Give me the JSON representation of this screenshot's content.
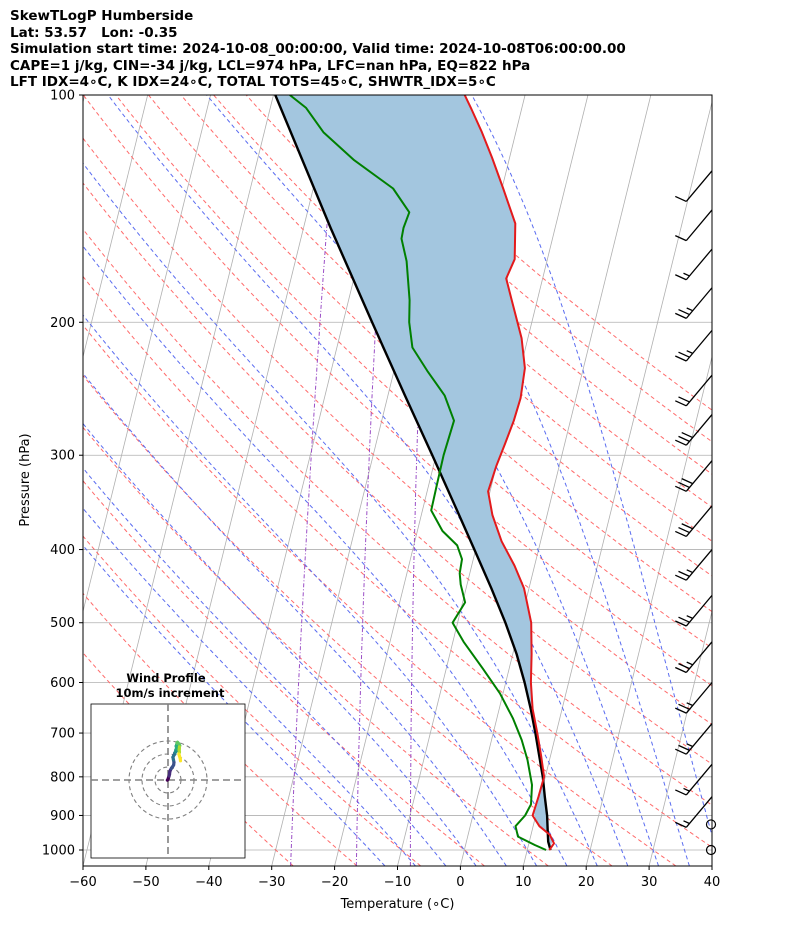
{
  "title": {
    "line1": "SkewTLogP Humberside",
    "line2": "Lat: 53.57   Lon: -0.35",
    "line3": "Simulation start time: 2024-10-08_00:00:00, Valid time: 2024-10-08T06:00:00.00",
    "line4": "CAPE=1 j/kg, CIN=-34 j/kg, LCL=974 hPa, LFC=nan hPa, EQ=822 hPa",
    "line5": "LFT IDX=4∘C, K IDX=24∘C, TOTAL TOTS=45∘C, SHWTR_IDX=5∘C"
  },
  "chart_data": {
    "type": "line",
    "subtype": "skew-t log-p",
    "xlabel": "Temperature (∘C)",
    "ylabel": "Pressure (hPa)",
    "xlim": [
      -60,
      40
    ],
    "ylim": [
      1050,
      100
    ],
    "y_scale": "log",
    "x_ticks": [
      -60,
      -50,
      -40,
      -30,
      -20,
      -10,
      0,
      10,
      20,
      30,
      40
    ],
    "x_tick_labels": [
      "−60",
      "−50",
      "−40",
      "−30",
      "−20",
      "−10",
      "0",
      "10",
      "20",
      "30",
      "40"
    ],
    "y_ticks": [
      100,
      200,
      300,
      400,
      500,
      600,
      700,
      800,
      900,
      1000
    ],
    "y_tick_labels": [
      "100",
      "200",
      "300",
      "400",
      "500",
      "600",
      "700",
      "800",
      "900",
      "1000"
    ],
    "grid": true,
    "colors": {
      "temperature": "#e31a1c",
      "dewpoint": "#008000",
      "parcel": "#000000",
      "shading": "#a3c6df",
      "isotherm": "#b0b0b0",
      "dry_adiabat": "#ff6b6b",
      "moist_adiabat": "#5a6cf0",
      "mixing_ratio": "#9b4fc6"
    },
    "series": [
      {
        "name": "",
        "role": "temperature",
        "points": [
          [
            13.5,
            1000
          ],
          [
            14.0,
            980
          ],
          [
            13.0,
            955
          ],
          [
            11.0,
            930
          ],
          [
            9.5,
            900
          ],
          [
            9.7,
            850
          ],
          [
            9.8,
            800
          ],
          [
            8.5,
            750
          ],
          [
            7.0,
            700
          ],
          [
            5.3,
            650
          ],
          [
            4.0,
            600
          ],
          [
            3.0,
            550
          ],
          [
            1.7,
            500
          ],
          [
            -0.8,
            450
          ],
          [
            -3.2,
            420
          ],
          [
            -6.2,
            390
          ],
          [
            -8.7,
            360
          ],
          [
            -10.3,
            335
          ],
          [
            -10.0,
            310
          ],
          [
            -9.5,
            290
          ],
          [
            -9.0,
            270
          ],
          [
            -8.8,
            252
          ],
          [
            -9.3,
            230
          ],
          [
            -11.0,
            210
          ],
          [
            -14.2,
            186
          ],
          [
            -15.8,
            175
          ],
          [
            -15.2,
            165
          ],
          [
            -16.5,
            148
          ],
          [
            -19.8,
            133
          ],
          [
            -22.8,
            121
          ],
          [
            -25.4,
            112
          ],
          [
            -28.1,
            104
          ],
          [
            -29.6,
            100
          ]
        ]
      },
      {
        "name": "",
        "role": "dewpoint",
        "points": [
          [
            13.0,
            1000
          ],
          [
            11.0,
            985
          ],
          [
            8.0,
            960
          ],
          [
            7.2,
            930
          ],
          [
            8.3,
            900
          ],
          [
            8.8,
            870
          ],
          [
            8.2,
            820
          ],
          [
            6.5,
            760
          ],
          [
            4.8,
            715
          ],
          [
            2.6,
            670
          ],
          [
            -0.5,
            620
          ],
          [
            -4.2,
            575
          ],
          [
            -8.3,
            530
          ],
          [
            -10.8,
            500
          ],
          [
            -9.6,
            470
          ],
          [
            -11.0,
            445
          ],
          [
            -11.6,
            430
          ],
          [
            -11.8,
            412
          ],
          [
            -13.1,
            395
          ],
          [
            -16.0,
            378
          ],
          [
            -18.6,
            355
          ],
          [
            -18.7,
            330
          ],
          [
            -18.8,
            300
          ],
          [
            -18.5,
            270
          ],
          [
            -21.0,
            250
          ],
          [
            -24.7,
            232
          ],
          [
            -28.0,
            216
          ],
          [
            -29.5,
            200
          ],
          [
            -30.3,
            187
          ],
          [
            -32.3,
            166
          ],
          [
            -34.0,
            155
          ],
          [
            -34.1,
            150
          ],
          [
            -33.8,
            143
          ],
          [
            -37.3,
            133
          ],
          [
            -44.6,
            122
          ],
          [
            -50.6,
            112
          ],
          [
            -54.3,
            104
          ],
          [
            -57.4,
            100
          ]
        ]
      },
      {
        "name": "",
        "role": "parcel",
        "points": [
          [
            13.7,
            1000
          ],
          [
            13.0,
            975
          ],
          [
            12.6,
            950
          ],
          [
            11.8,
            900
          ],
          [
            10.7,
            850
          ],
          [
            9.6,
            800
          ],
          [
            8.2,
            750
          ],
          [
            6.7,
            700
          ],
          [
            5.0,
            650
          ],
          [
            3.0,
            600
          ],
          [
            0.6,
            550
          ],
          [
            -2.4,
            500
          ],
          [
            -6.0,
            450
          ],
          [
            -10.2,
            400
          ],
          [
            -15.0,
            350
          ],
          [
            -20.6,
            300
          ],
          [
            -27.3,
            250
          ],
          [
            -35.4,
            200
          ],
          [
            -45.7,
            150
          ],
          [
            -59.7,
            100
          ]
        ]
      }
    ],
    "isotherms": [
      -150,
      -140,
      -130,
      -120,
      -110,
      -100,
      -90,
      -80,
      -70,
      -60,
      -50,
      -40,
      -30,
      -20,
      -10,
      0,
      10,
      20,
      30,
      40
    ],
    "dry_adiabats_theta_c": [
      -30,
      -20,
      -10,
      0,
      10,
      20,
      30,
      40,
      50,
      60,
      70,
      80,
      90,
      100,
      110,
      120,
      130,
      140,
      150,
      160
    ],
    "moist_adiabats_t1000_c": [
      -15,
      -10,
      -5,
      0,
      5,
      10,
      15,
      20,
      25,
      30,
      35,
      40
    ],
    "mixing_ratio_lines_gkg": [
      0.4,
      1,
      2
    ],
    "wind_barbs": [
      {
        "p": 1000,
        "speed_kt": 0
      },
      {
        "p": 925,
        "speed_kt": 0
      },
      {
        "p": 850,
        "speed_kt": 15
      },
      {
        "p": 770,
        "speed_kt": 15
      },
      {
        "p": 680,
        "speed_kt": 25
      },
      {
        "p": 600,
        "speed_kt": 25
      },
      {
        "p": 530,
        "speed_kt": 25
      },
      {
        "p": 460,
        "speed_kt": 25
      },
      {
        "p": 400,
        "speed_kt": 25
      },
      {
        "p": 350,
        "speed_kt": 30
      },
      {
        "p": 305,
        "speed_kt": 30
      },
      {
        "p": 265,
        "speed_kt": 30
      },
      {
        "p": 235,
        "speed_kt": 20
      },
      {
        "p": 205,
        "speed_kt": 25
      },
      {
        "p": 180,
        "speed_kt": 25
      },
      {
        "p": 160,
        "speed_kt": 15
      },
      {
        "p": 142,
        "speed_kt": 10
      },
      {
        "p": 126,
        "speed_kt": 10
      }
    ],
    "hodograph": {
      "title": "Wind Profile",
      "subtitle": "10m/s increment",
      "rings_ms": [
        10,
        20,
        30
      ],
      "points": [
        [
          -0.5,
          -0.1
        ],
        [
          0,
          0.5
        ],
        [
          0.3,
          1.5
        ],
        [
          0.8,
          3.0
        ],
        [
          1.2,
          4.5
        ],
        [
          1.3,
          6.0
        ],
        [
          1.8,
          7.5
        ],
        [
          2.5,
          8.8
        ],
        [
          3.4,
          10.0
        ],
        [
          4.3,
          11.5
        ],
        [
          4.6,
          13.5
        ],
        [
          4.2,
          15.5
        ],
        [
          3.8,
          17.5
        ],
        [
          4.5,
          19.0
        ],
        [
          5.3,
          20.0
        ],
        [
          5.2,
          20.8
        ],
        [
          5.8,
          21.6
        ],
        [
          6.3,
          22.2
        ],
        [
          6.8,
          22.8
        ],
        [
          6.0,
          23.0
        ],
        [
          6.5,
          24.0
        ],
        [
          6.6,
          25.0
        ],
        [
          6.3,
          26.0
        ],
        [
          6.6,
          26.8
        ],
        [
          6.9,
          27.5
        ],
        [
          6.9,
          28.3
        ],
        [
          7.3,
          29.0
        ],
        [
          8.4,
          27.8
        ],
        [
          9.0,
          26.5
        ],
        [
          8.8,
          25.5
        ],
        [
          8.7,
          24.0
        ],
        [
          8.6,
          23.0
        ],
        [
          8.8,
          21.5
        ],
        [
          8.4,
          20.0
        ],
        [
          8.8,
          18.5
        ],
        [
          9.4,
          16.5
        ],
        [
          9.6,
          14.8
        ]
      ]
    }
  }
}
